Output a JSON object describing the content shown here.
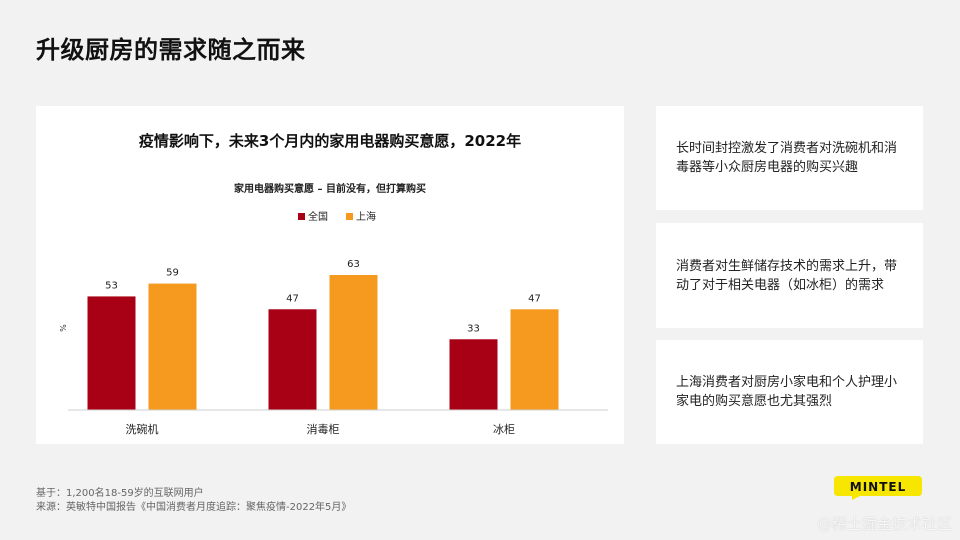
{
  "page": {
    "title": "升级厨房的需求随之而来"
  },
  "colors": {
    "national": "#a80014",
    "shanghai": "#f59a1f",
    "logo_bg": "#f7e600"
  },
  "chart_data": {
    "type": "bar",
    "title": "疫情影响下，未来3个月内的家用电器购买意愿，2022年",
    "subtitle": "家用电器购买意愿 – 目前没有，但打算购买",
    "ylabel": "%",
    "ylim": [
      0,
      70
    ],
    "legend_position": "top-center",
    "categories": [
      "洗碗机",
      "消毒柜",
      "冰柜"
    ],
    "series": [
      {
        "name": "全国",
        "values": [
          53,
          47,
          33
        ]
      },
      {
        "name": "上海",
        "values": [
          59,
          63,
          47
        ]
      }
    ]
  },
  "insights": [
    {
      "text": "长时间封控激发了消费者对洗碗机和消毒器等小众厨房电器的购买兴趣"
    },
    {
      "text": "消费者对生鲜储存技术的需求上升，带动了对于相关电器（如冰柜）的需求"
    },
    {
      "text": "上海消费者对厨房小家电和个人护理小家电的购买意愿也尤其强烈"
    }
  ],
  "footnotes": {
    "base": "基于：1,200名18-59岁的互联网用户",
    "source": "来源：英敏特中国报告《中国消费者月度追踪：聚焦疫情-2022年5月》"
  },
  "logo": {
    "text": "MINTEL",
    "icon": "mintel-logo-icon"
  },
  "watermark": "@稀土掘金技术社区"
}
